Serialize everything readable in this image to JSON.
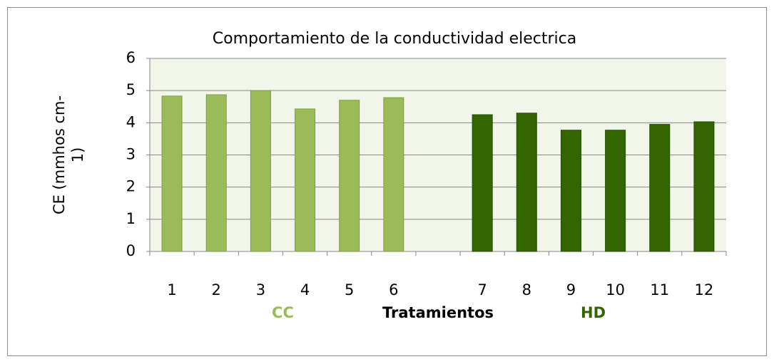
{
  "chart_data": {
    "type": "bar",
    "title": "Comportamiento de la conductividad electrica",
    "xlabel": "Tratamientos",
    "ylabel": "CE (mmhos cm-1)",
    "categories": [
      "1",
      "2",
      "3",
      "4",
      "5",
      "6",
      null,
      "7",
      "8",
      "9",
      "10",
      "11",
      "12"
    ],
    "series": [
      {
        "name": "CC",
        "color": "#9bbb59",
        "values": [
          4.83,
          4.87,
          5.0,
          4.43,
          4.7,
          4.78,
          null,
          null,
          null,
          null,
          null,
          null,
          null
        ]
      },
      {
        "name": "HD",
        "color": "#336600",
        "values": [
          null,
          null,
          null,
          null,
          null,
          null,
          null,
          4.25,
          4.3,
          3.77,
          3.77,
          3.95,
          4.03
        ]
      }
    ],
    "ylim": [
      0,
      6
    ],
    "yticks": [
      0,
      1,
      2,
      3,
      4,
      5,
      6
    ],
    "grid": true
  }
}
